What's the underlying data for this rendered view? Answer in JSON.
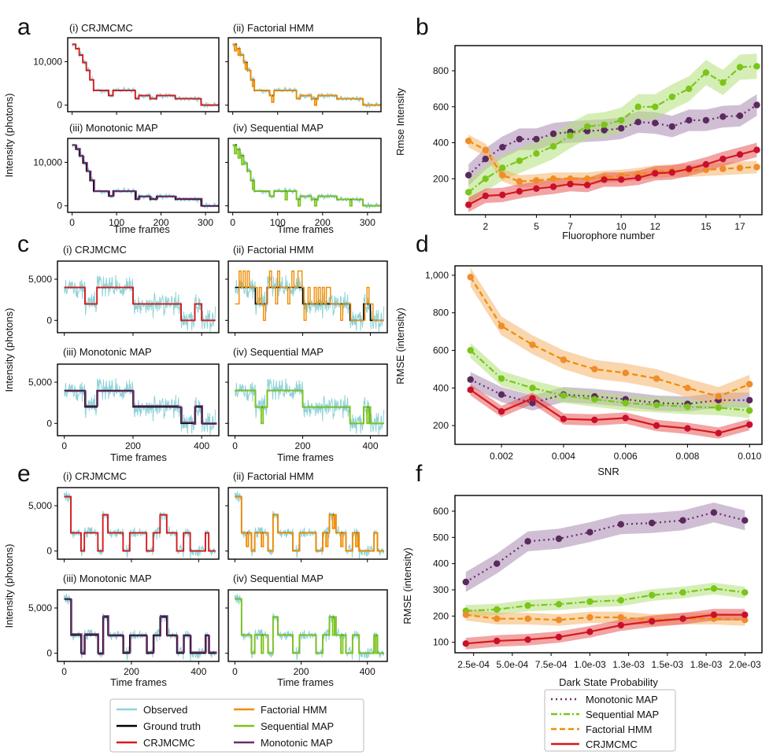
{
  "colors": {
    "observed": "#8fd3d6",
    "truth": "#000000",
    "crj": "#d7191c",
    "fhmm": "#f08c00",
    "seq": "#7ac51a",
    "mono": "#6b2d6e",
    "crj_band": "#e85a5a",
    "fhmm_band": "#f4b46a",
    "seq_band": "#b3e07a",
    "mono_band": "#a98bb0",
    "dot_crj": "#c8102e",
    "dot_fhmm": "#f08c2a",
    "dot_seq": "#7ac51a",
    "dot_mono": "#5a2a5e"
  },
  "panel_letters": [
    "a",
    "b",
    "c",
    "d",
    "e",
    "f"
  ],
  "traces": {
    "ylabel": "Intensity (photons)",
    "xlabel": "Time frames",
    "method_titles": [
      "(i) CRJMCMC",
      "(ii) Factorial HMM",
      "(iii) Monotonic MAP",
      "(iv) Sequential MAP"
    ],
    "groups": [
      {
        "xlim": [
          -10,
          330
        ],
        "ylim": [
          -1500,
          15500
        ],
        "xticks": [
          0,
          100,
          200,
          300
        ],
        "yticks": [
          0,
          10000
        ],
        "ytick_labels": [
          "0",
          "10,000"
        ],
        "truth": [
          [
            0,
            14000
          ],
          [
            8,
            13000
          ],
          [
            16,
            11500
          ],
          [
            24,
            9800
          ],
          [
            32,
            8000
          ],
          [
            40,
            5800
          ],
          [
            48,
            3400
          ],
          [
            82,
            2200
          ],
          [
            92,
            3400
          ],
          [
            142,
            1500
          ],
          [
            150,
            2200
          ],
          [
            175,
            1500
          ],
          [
            190,
            2200
          ],
          [
            232,
            1500
          ],
          [
            290,
            0
          ],
          [
            330,
            0
          ]
        ],
        "noise": 550
      },
      {
        "xlim": [
          -20,
          450
        ],
        "ylim": [
          -1500,
          7200
        ],
        "xticks": [
          0,
          200,
          400
        ],
        "yticks": [
          0,
          5000
        ],
        "ytick_labels": [
          "0",
          "5,000"
        ],
        "truth": [
          [
            0,
            4000
          ],
          [
            60,
            2000
          ],
          [
            95,
            4000
          ],
          [
            200,
            2000
          ],
          [
            330,
            2000
          ],
          [
            340,
            0
          ],
          [
            375,
            0
          ],
          [
            380,
            2000
          ],
          [
            400,
            0
          ],
          [
            440,
            0
          ]
        ],
        "noise": 1300
      },
      {
        "xlim": [
          -20,
          460
        ],
        "ylim": [
          -900,
          7000
        ],
        "xticks": [
          0,
          200,
          400
        ],
        "yticks": [
          0,
          5000
        ],
        "ytick_labels": [
          "0",
          "5,000"
        ],
        "truth": [
          [
            0,
            6000
          ],
          [
            20,
            2000
          ],
          [
            50,
            0
          ],
          [
            60,
            2000
          ],
          [
            100,
            0
          ],
          [
            115,
            4000
          ],
          [
            130,
            2000
          ],
          [
            175,
            0
          ],
          [
            195,
            2000
          ],
          [
            245,
            0
          ],
          [
            265,
            2000
          ],
          [
            285,
            4000
          ],
          [
            305,
            2000
          ],
          [
            335,
            0
          ],
          [
            355,
            2000
          ],
          [
            375,
            0
          ],
          [
            420,
            2000
          ],
          [
            430,
            0
          ],
          [
            450,
            0
          ]
        ],
        "noise": 550
      }
    ]
  },
  "chart_data": [
    {
      "type": "line",
      "panel": "b",
      "xlabel": "Fluorophore number",
      "ylabel": "Rmse Intensity",
      "xlim": [
        0.2,
        18.3
      ],
      "ylim": [
        0,
        940
      ],
      "xticks": [
        2,
        5,
        7,
        10,
        12,
        15,
        17
      ],
      "xtick_labels": [
        "2",
        "5",
        "7",
        "10",
        "12",
        "15",
        "17"
      ],
      "yticks": [
        200,
        400,
        600,
        800
      ],
      "ytick_labels": [
        "200",
        "400",
        "600",
        "800"
      ],
      "x": [
        1,
        2,
        3,
        4,
        5,
        6,
        7,
        8,
        9,
        10,
        11,
        12,
        13,
        14,
        15,
        16,
        17,
        18
      ],
      "series": [
        {
          "name": "Monotonic MAP",
          "key": "mono",
          "values": [
            220,
            310,
            375,
            420,
            420,
            450,
            460,
            465,
            470,
            480,
            515,
            510,
            490,
            525,
            525,
            545,
            550,
            610
          ],
          "band": 60
        },
        {
          "name": "Sequential MAP",
          "key": "seq",
          "values": [
            125,
            200,
            260,
            300,
            340,
            380,
            440,
            490,
            500,
            525,
            600,
            600,
            655,
            700,
            790,
            735,
            820,
            825
          ],
          "band": 70
        },
        {
          "name": "Factorial HMM",
          "key": "fhmm",
          "values": [
            410,
            360,
            220,
            185,
            190,
            200,
            200,
            200,
            210,
            215,
            225,
            240,
            245,
            245,
            250,
            255,
            260,
            265
          ],
          "band": 35
        },
        {
          "name": "CRJMCMC",
          "key": "crj",
          "values": [
            55,
            105,
            110,
            130,
            145,
            155,
            170,
            165,
            195,
            195,
            205,
            230,
            235,
            255,
            280,
            310,
            335,
            360
          ],
          "band": 40
        }
      ]
    },
    {
      "type": "line",
      "panel": "d",
      "xlabel": "SNR",
      "ylabel": "RMSE (intensity)",
      "xlim": [
        0.0005,
        0.0104
      ],
      "ylim": [
        100,
        1050
      ],
      "xticks": [
        0.002,
        0.004,
        0.006,
        0.008,
        0.01
      ],
      "xtick_labels": [
        "0.002",
        "0.004",
        "0.006",
        "0.008",
        "0.010"
      ],
      "yticks": [
        200,
        400,
        600,
        800,
        1000
      ],
      "ytick_labels": [
        "200",
        "400",
        "600",
        "800",
        "1,000"
      ],
      "x": [
        0.001,
        0.002,
        0.003,
        0.004,
        0.005,
        0.006,
        0.007,
        0.008,
        0.009,
        0.01
      ],
      "series": [
        {
          "name": "Monotonic MAP",
          "key": "mono",
          "values": [
            445,
            365,
            320,
            365,
            355,
            340,
            320,
            315,
            335,
            335
          ],
          "band": 40
        },
        {
          "name": "Sequential MAP",
          "key": "seq",
          "values": [
            600,
            450,
            400,
            360,
            340,
            320,
            310,
            300,
            295,
            280
          ],
          "band": 40
        },
        {
          "name": "Factorial HMM",
          "key": "fhmm",
          "values": [
            990,
            730,
            630,
            550,
            500,
            480,
            450,
            400,
            355,
            420
          ],
          "band": 50
        },
        {
          "name": "CRJMCMC",
          "key": "crj",
          "values": [
            390,
            275,
            345,
            235,
            230,
            240,
            200,
            185,
            160,
            205
          ],
          "band": 30
        }
      ]
    },
    {
      "type": "line",
      "panel": "f",
      "xlabel": "Dark State Probability",
      "ylabel": "RMSE (intensity)",
      "xlim": [
        0.00013,
        0.00211
      ],
      "ylim": [
        60,
        660
      ],
      "xticks": [
        0.00025,
        0.0005,
        0.00075,
        0.001,
        0.00125,
        0.0015,
        0.00175,
        0.002
      ],
      "xtick_labels": [
        "2.5e-04",
        "5.0e-04",
        "7.5e-04",
        "1.0e-03",
        "1.3e-03",
        "1.5e-03",
        "1.8e-03",
        "2.0e-03"
      ],
      "yticks": [
        100,
        200,
        300,
        400,
        500,
        600
      ],
      "ytick_labels": [
        "100",
        "200",
        "300",
        "400",
        "500",
        "600"
      ],
      "x": [
        0.0002,
        0.0004,
        0.0006,
        0.0008,
        0.001,
        0.0012,
        0.0014,
        0.0016,
        0.0018,
        0.002
      ],
      "series": [
        {
          "name": "Monotonic MAP",
          "key": "mono",
          "values": [
            330,
            400,
            485,
            495,
            520,
            550,
            555,
            565,
            595,
            565
          ],
          "band": 38
        },
        {
          "name": "Sequential MAP",
          "key": "seq",
          "values": [
            220,
            225,
            240,
            245,
            255,
            260,
            280,
            290,
            305,
            290
          ],
          "band": 22
        },
        {
          "name": "Factorial HMM",
          "key": "fhmm",
          "values": [
            205,
            190,
            190,
            185,
            195,
            195,
            185,
            190,
            190,
            185
          ],
          "band": 22
        },
        {
          "name": "CRJMCMC",
          "key": "crj",
          "values": [
            95,
            105,
            110,
            120,
            140,
            165,
            180,
            190,
            205,
            205
          ],
          "band": 22
        }
      ]
    }
  ],
  "legend_traces": [
    {
      "label": "Observed",
      "key": "observed"
    },
    {
      "label": "Ground truth",
      "key": "truth"
    },
    {
      "label": "CRJMCMC",
      "key": "crj"
    },
    {
      "label": "Factorial HMM",
      "key": "fhmm"
    },
    {
      "label": "Sequential MAP",
      "key": "seq"
    },
    {
      "label": "Monotonic MAP",
      "key": "mono"
    }
  ],
  "legend_rmse": [
    {
      "label": "Monotonic MAP",
      "key": "mono"
    },
    {
      "label": "Sequential MAP",
      "key": "seq"
    },
    {
      "label": "Factorial HMM",
      "key": "fhmm"
    },
    {
      "label": "CRJMCMC",
      "key": "crj"
    }
  ]
}
